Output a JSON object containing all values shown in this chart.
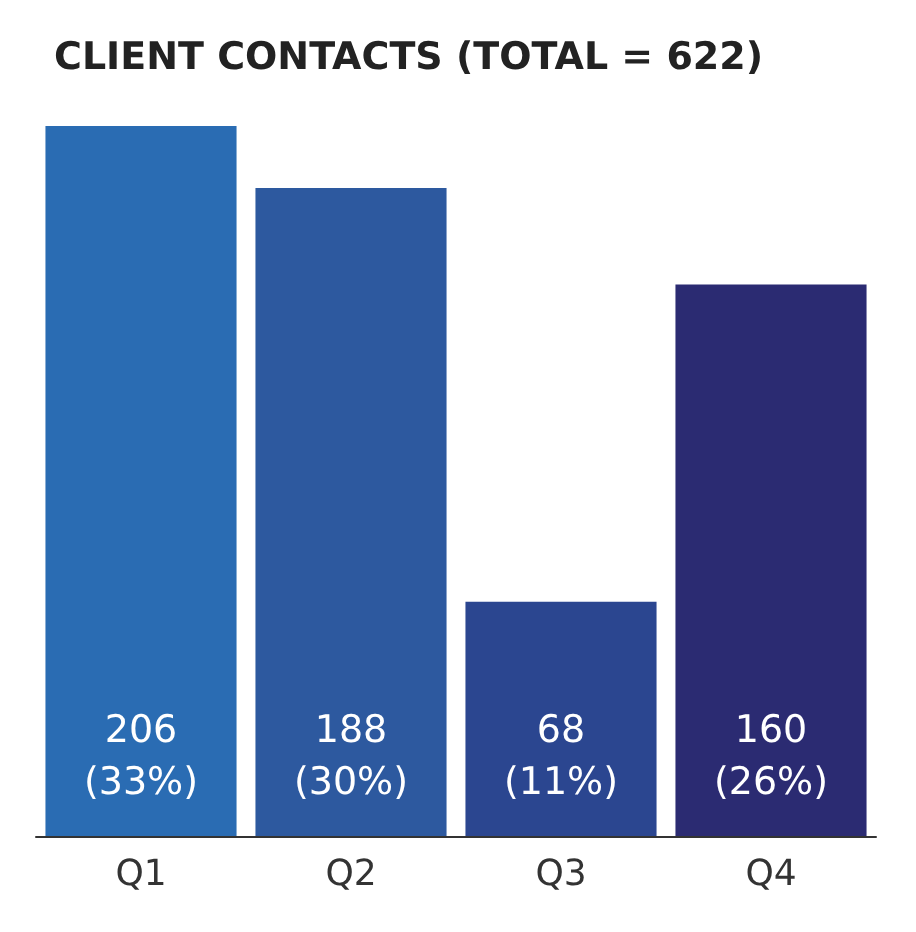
{
  "chart_data": {
    "type": "bar",
    "title": "CLIENT CONTACTS (TOTAL = 622)",
    "categories": [
      "Q1",
      "Q2",
      "Q3",
      "Q4"
    ],
    "values": [
      206,
      188,
      68,
      160
    ],
    "colors": [
      "#2a6cb3",
      "#2d599f",
      "#2b4690",
      "#2b2b72"
    ],
    "value_labels": [
      "206\n(33%)",
      "188\n(30%)",
      "68\n(11%)",
      "160\n(26%)"
    ]
  }
}
